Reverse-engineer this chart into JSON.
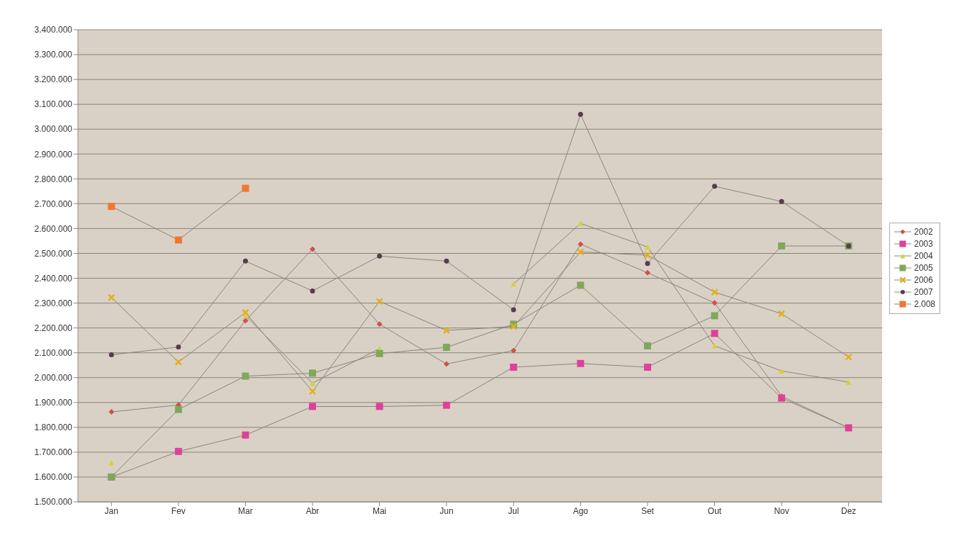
{
  "chart_data": {
    "type": "line",
    "categories": [
      "Jan",
      "Fev",
      "Mar",
      "Abr",
      "Mai",
      "Jun",
      "Jul",
      "Ago",
      "Set",
      "Out",
      "Nov",
      "Dez"
    ],
    "series": [
      {
        "name": "2002",
        "color": "#d0504a",
        "marker": "diamond",
        "values": [
          1862000,
          1890000,
          2229000,
          2517000,
          2215000,
          2055000,
          2109000,
          2537000,
          2422000,
          2301000,
          1925000,
          1798000
        ]
      },
      {
        "name": "2003",
        "color": "#e0409a",
        "marker": "square",
        "values": [
          1600000,
          1703000,
          1769000,
          1884000,
          1884000,
          1889000,
          2042000,
          2057000,
          2042000,
          2178000,
          1918000,
          1798000
        ]
      },
      {
        "name": "2004",
        "color": "#d8d040",
        "marker": "triangle",
        "values": [
          1658000,
          null,
          2250000,
          1978000,
          2117000,
          null,
          2377000,
          2621000,
          2526000,
          2128000,
          2027000,
          1982000
        ]
      },
      {
        "name": "2005",
        "color": "#7fa85a",
        "marker": "square",
        "values": [
          1600000,
          1872000,
          2006000,
          2018000,
          2097000,
          2122000,
          2215000,
          2372000,
          2128000,
          2249000,
          2530000,
          2530000
        ]
      },
      {
        "name": "2006",
        "color": "#e0b020",
        "marker": "cross",
        "values": [
          2323000,
          2063000,
          2262000,
          1945000,
          2307000,
          2190000,
          2206000,
          2506000,
          2493000,
          2344000,
          2257000,
          2083000
        ]
      },
      {
        "name": "2007",
        "color": "#5a3a50",
        "marker": "circle",
        "values": [
          2092000,
          2123000,
          2469000,
          2349000,
          2489000,
          2469000,
          2273000,
          3060000,
          2459000,
          2770000,
          2709000,
          2530000
        ]
      },
      {
        "name": "2.008",
        "color": "#f07830",
        "marker": "square",
        "values": [
          2689000,
          2554000,
          2762000,
          null,
          null,
          null,
          null,
          null,
          null,
          null,
          null,
          null
        ]
      }
    ],
    "ylim": [
      1500000,
      3400000
    ],
    "yticks": [
      {
        "value": 1500000,
        "label": "1.500.000"
      },
      {
        "value": 1600000,
        "label": "1.600.000"
      },
      {
        "value": 1700000,
        "label": "1.700.000"
      },
      {
        "value": 1800000,
        "label": "1.800.000"
      },
      {
        "value": 1900000,
        "label": "1.900.000"
      },
      {
        "value": 2000000,
        "label": "2.000.000"
      },
      {
        "value": 2100000,
        "label": "2.100.000"
      },
      {
        "value": 2200000,
        "label": "2.200.000"
      },
      {
        "value": 2300000,
        "label": "2.300.000"
      },
      {
        "value": 2400000,
        "label": "2.400.000"
      },
      {
        "value": 2500000,
        "label": "2.500.000"
      },
      {
        "value": 2600000,
        "label": "2.600.000"
      },
      {
        "value": 2700000,
        "label": "2.700.000"
      },
      {
        "value": 2800000,
        "label": "2.800.000"
      },
      {
        "value": 2900000,
        "label": "2.900.000"
      },
      {
        "value": 3000000,
        "label": "3.000.000"
      },
      {
        "value": 3100000,
        "label": "3.100.000"
      },
      {
        "value": 3200000,
        "label": "3.200.000"
      },
      {
        "value": 3300000,
        "label": "3.300.000"
      },
      {
        "value": 3400000,
        "label": "3.400.000"
      }
    ],
    "grid": "y",
    "legend": "right"
  }
}
